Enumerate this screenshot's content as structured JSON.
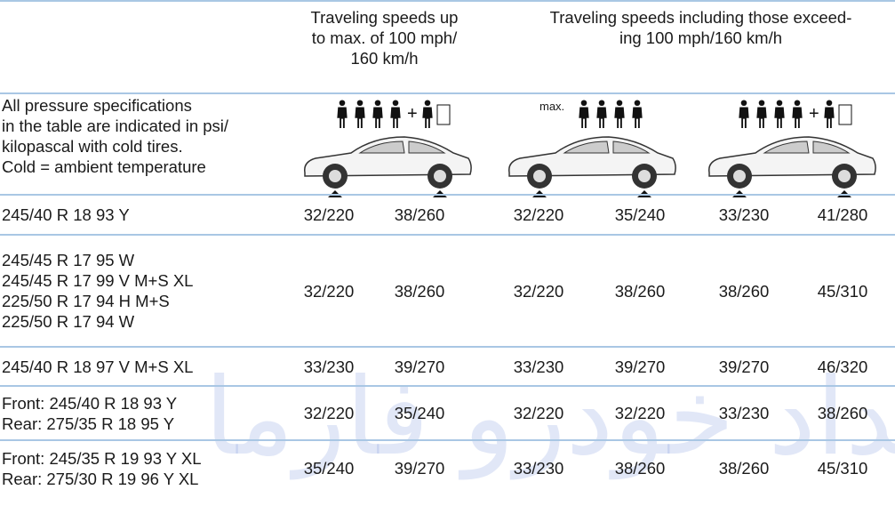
{
  "table": {
    "headers": [
      "Traveling speeds up to max. of 100 mph/ 160 km/h",
      "Traveling speeds including those exceed- ing 100 mph/160 km/h"
    ],
    "header_lines": [
      [
        "Traveling speeds up",
        "to max. of 100 mph/",
        "160 km/h"
      ],
      [
        "Traveling speeds including those exceed-",
        "ing 100 mph/160 km/h"
      ]
    ],
    "note": [
      "All pressure specifications",
      "in the table are indicated in psi/",
      "kilopascal with cold tires.",
      "Cold = ambient temperature"
    ],
    "icon_label": "max.",
    "rows": [
      {
        "tire": [
          "245/40 R 18 93 Y"
        ],
        "values": [
          "32/220",
          "38/260",
          "32/220",
          "35/240",
          "33/230",
          "41/280"
        ]
      },
      {
        "tire": [
          "245/45 R 17 95 W",
          "245/45 R 17 99 V M+S XL",
          "225/50 R 17 94 H M+S",
          "225/50 R 17 94 W"
        ],
        "values": [
          "32/220",
          "38/260",
          "32/220",
          "38/260",
          "38/260",
          "45/310"
        ]
      },
      {
        "tire": [
          "245/40 R 18 97 V M+S XL"
        ],
        "values": [
          "33/230",
          "39/270",
          "33/230",
          "39/270",
          "39/270",
          "46/320"
        ]
      },
      {
        "tire": [
          "Front: 245/40 R 18 93 Y",
          "Rear: 275/35 R 18 95 Y"
        ],
        "values": [
          "32/220",
          "35/240",
          "32/220",
          "32/220",
          "33/230",
          "38/260"
        ]
      },
      {
        "tire": [
          "Front: 245/35 R 19 93 Y XL",
          "Rear: 275/30 R 19 96 Y XL"
        ],
        "values": [
          "35/240",
          "39/270",
          "33/230",
          "38/260",
          "38/260",
          "45/310"
        ]
      }
    ],
    "watermark": "امداد خودرو فارما"
  }
}
